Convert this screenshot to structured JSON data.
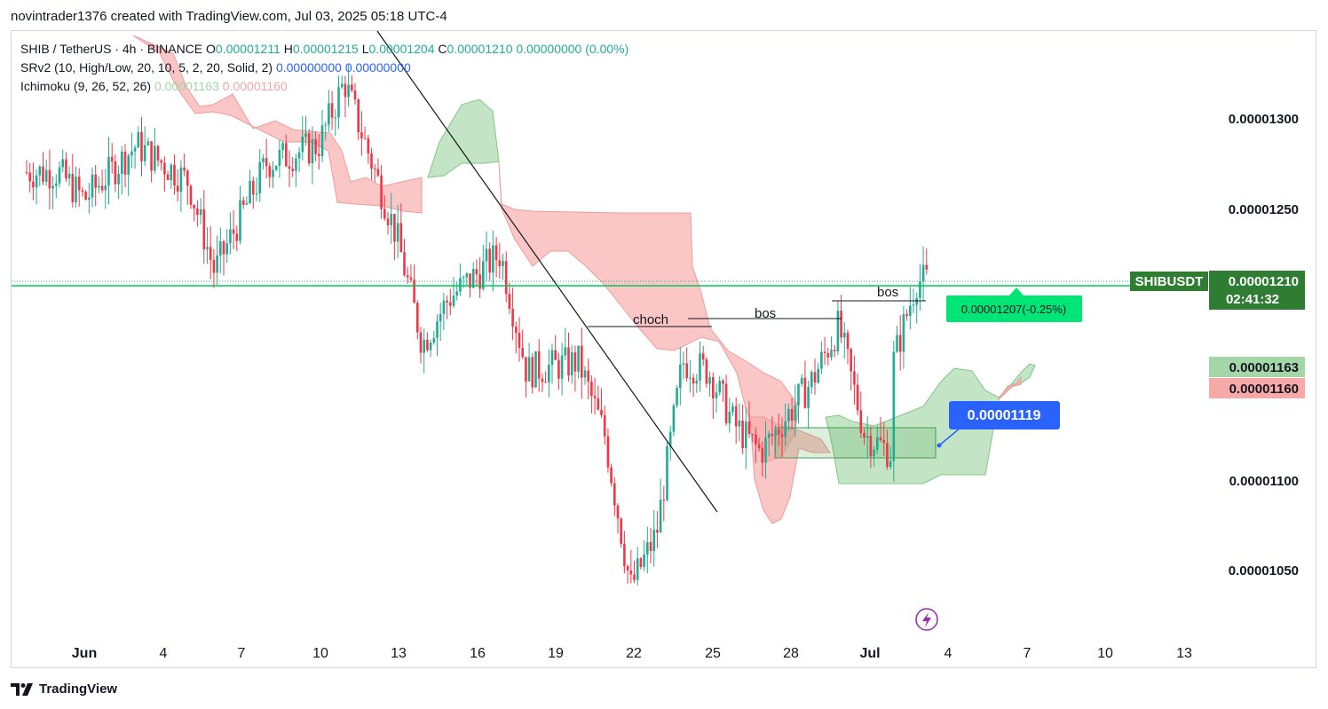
{
  "header": {
    "author_line": "novintrader1376 created with TradingView.com, Jul 03, 2025 05:18 UTC-4"
  },
  "legend": {
    "symbol_line": {
      "prefix": "SHIB / TetherUS · 4h · BINANCE",
      "open_label": "O",
      "open": "0.00001211",
      "high_label": "H",
      "high": "0.00001215",
      "low_label": "L",
      "low": "0.00001204",
      "close_label": "C",
      "close": "0.00001210",
      "change": "0.00000000 (0.00%)"
    },
    "srv2_line": {
      "label": "SRv2 (10, High/Low, 20, 10, 5, 2, 20, Solid, 2)",
      "v1": "0.00000000",
      "v2": "0.00000000"
    },
    "ichimoku_line": {
      "label": "Ichimoku (9, 26, 52, 26)",
      "v1": "0.00001163",
      "v2": "0.00001160"
    }
  },
  "footer": {
    "brand": "TradingView"
  },
  "colors": {
    "up": "#22ab94",
    "down": "#f23645",
    "price_line": "#00c853",
    "cloud_bull": "#a5d6a7",
    "cloud_bear": "#f7a9a8",
    "label_blue": "#2962ff",
    "text": "#131722"
  },
  "chart_data": {
    "type": "candlestick",
    "symbol": "SHIBUSDT",
    "timeframe": "4h",
    "exchange": "BINANCE",
    "y_axis": {
      "ticks": [
        "0.00001300",
        "0.00001250",
        "0.00001100",
        "0.00001050"
      ],
      "range": [
        1.02e-05,
        1.33e-05
      ]
    },
    "x_axis": {
      "ticks": [
        "Jun",
        "4",
        "7",
        "10",
        "13",
        "16",
        "19",
        "22",
        "25",
        "28",
        "Jul",
        "4",
        "7",
        "10",
        "13"
      ]
    },
    "last_price": {
      "symbol": "SHIBUSDT",
      "value": "0.00001210",
      "countdown": "02:41:32"
    },
    "ichimoku_labels": {
      "span_a": "0.00001163",
      "span_b": "0.00001160"
    },
    "annotations": {
      "choch": "choch",
      "bos_1": "bos",
      "bos_2": "bos",
      "projection_label": "0.00001207(-0.25%)",
      "target_label": "0.00001119"
    },
    "price_path": [
      {
        "date": "May 31",
        "price": 1.27e-05
      },
      {
        "date": "Jun 1",
        "price": 1.255e-05
      },
      {
        "date": "Jun 3",
        "price": 1.285e-05
      },
      {
        "date": "Jun 5",
        "price": 1.265e-05
      },
      {
        "date": "Jun 6",
        "price": 1.215e-05
      },
      {
        "date": "Jun 8",
        "price": 1.275e-05
      },
      {
        "date": "Jun 10",
        "price": 1.285e-05
      },
      {
        "date": "Jun 11",
        "price": 1.32e-05
      },
      {
        "date": "Jun 13",
        "price": 1.235e-05
      },
      {
        "date": "Jun 14",
        "price": 1.175e-05
      },
      {
        "date": "Jun 15",
        "price": 1.2e-05
      },
      {
        "date": "Jun 17",
        "price": 1.225e-05
      },
      {
        "date": "Jun 18",
        "price": 1.16e-05
      },
      {
        "date": "Jun 20",
        "price": 1.165e-05
      },
      {
        "date": "Jun 21",
        "price": 1.125e-05
      },
      {
        "date": "Jun 22",
        "price": 1.04e-05
      },
      {
        "date": "Jun 23",
        "price": 1.07e-05
      },
      {
        "date": "Jun 24",
        "price": 1.165e-05
      },
      {
        "date": "Jun 25",
        "price": 1.16e-05
      },
      {
        "date": "Jun 26",
        "price": 1.13e-05
      },
      {
        "date": "Jun 27",
        "price": 1.115e-05
      },
      {
        "date": "Jun 29",
        "price": 1.155e-05
      },
      {
        "date": "Jun 30",
        "price": 1.185e-05
      },
      {
        "date": "Jul 1",
        "price": 1.125e-05
      },
      {
        "date": "Jul 2",
        "price": 1.115e-05
      },
      {
        "date": "Jul 2",
        "price": 1.16e-05
      },
      {
        "date": "Jul 3",
        "price": 1.21e-05
      }
    ]
  }
}
